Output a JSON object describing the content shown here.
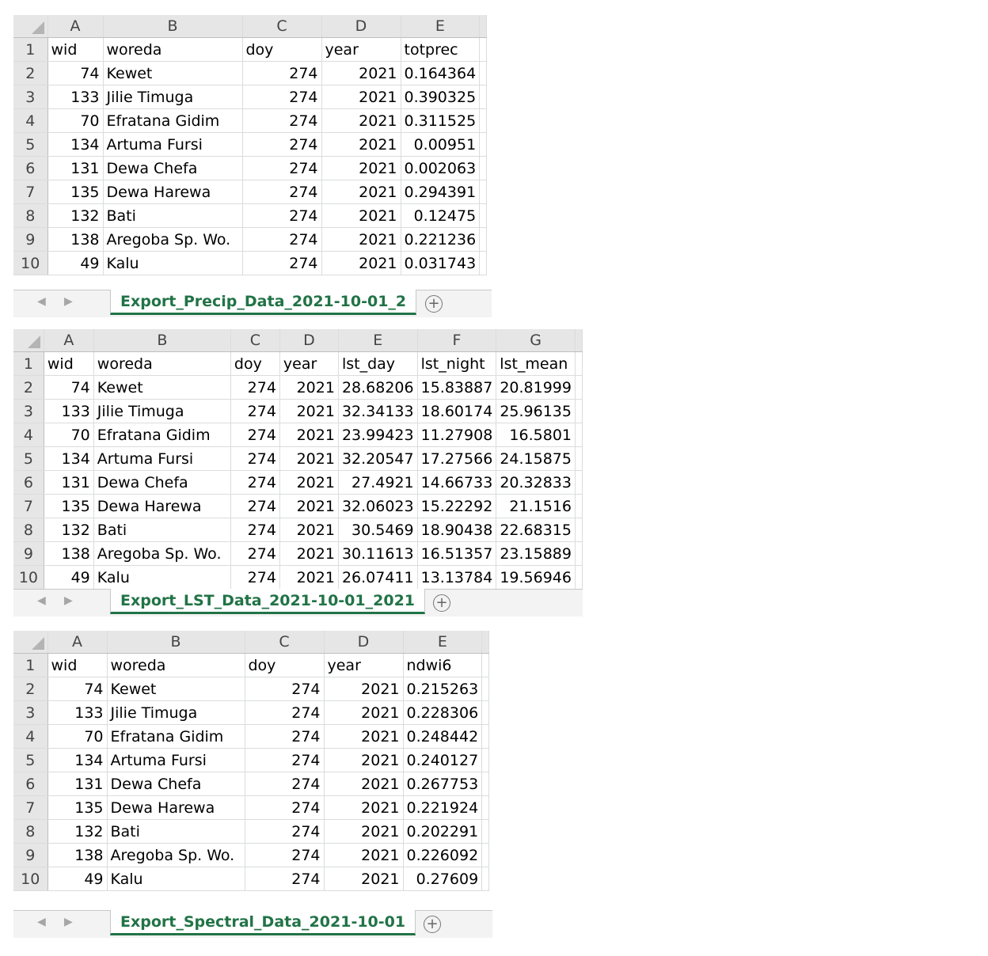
{
  "plus_symbol": "+",
  "nav": {
    "prev": "◀",
    "next": "▶"
  },
  "sheets": [
    {
      "tab_name": "Export_Precip_Data_2021-10-01_2",
      "column_letters": [
        "A",
        "B",
        "C",
        "D",
        "E"
      ],
      "row_numbers": [
        "1",
        "2",
        "3",
        "4",
        "5",
        "6",
        "7",
        "8",
        "9",
        "10"
      ],
      "headers": [
        "wid",
        "woreda",
        "doy",
        "year",
        "totprec"
      ],
      "rows": [
        [
          "74",
          "Kewet",
          "274",
          "2021",
          "0.164364"
        ],
        [
          "133",
          "Jilie Timuga",
          "274",
          "2021",
          "0.390325"
        ],
        [
          "70",
          "Efratana Gidim",
          "274",
          "2021",
          "0.311525"
        ],
        [
          "134",
          "Artuma Fursi",
          "274",
          "2021",
          "0.00951"
        ],
        [
          "131",
          "Dewa Chefa",
          "274",
          "2021",
          "0.002063"
        ],
        [
          "135",
          "Dewa Harewa",
          "274",
          "2021",
          "0.294391"
        ],
        [
          "132",
          "Bati",
          "274",
          "2021",
          "0.12475"
        ],
        [
          "138",
          "Aregoba Sp. Wo.",
          "274",
          "2021",
          "0.221236"
        ],
        [
          "49",
          "Kalu",
          "274",
          "2021",
          "0.031743"
        ]
      ]
    },
    {
      "tab_name": "Export_LST_Data_2021-10-01_2021",
      "column_letters": [
        "A",
        "B",
        "C",
        "D",
        "E",
        "F",
        "G"
      ],
      "row_numbers": [
        "1",
        "2",
        "3",
        "4",
        "5",
        "6",
        "7",
        "8",
        "9",
        "10"
      ],
      "headers": [
        "wid",
        "woreda",
        "doy",
        "year",
        "lst_day",
        "lst_night",
        "lst_mean"
      ],
      "rows": [
        [
          "74",
          "Kewet",
          "274",
          "2021",
          "28.68206",
          "15.83887",
          "20.81999"
        ],
        [
          "133",
          "Jilie Timuga",
          "274",
          "2021",
          "32.34133",
          "18.60174",
          "25.96135"
        ],
        [
          "70",
          "Efratana Gidim",
          "274",
          "2021",
          "23.99423",
          "11.27908",
          "16.5801"
        ],
        [
          "134",
          "Artuma Fursi",
          "274",
          "2021",
          "32.20547",
          "17.27566",
          "24.15875"
        ],
        [
          "131",
          "Dewa Chefa",
          "274",
          "2021",
          "27.4921",
          "14.66733",
          "20.32833"
        ],
        [
          "135",
          "Dewa Harewa",
          "274",
          "2021",
          "32.06023",
          "15.22292",
          "21.1516"
        ],
        [
          "132",
          "Bati",
          "274",
          "2021",
          "30.5469",
          "18.90438",
          "22.68315"
        ],
        [
          "138",
          "Aregoba Sp. Wo.",
          "274",
          "2021",
          "30.11613",
          "16.51357",
          "23.15889"
        ],
        [
          "49",
          "Kalu",
          "274",
          "2021",
          "26.07411",
          "13.13784",
          "19.56946"
        ]
      ]
    },
    {
      "tab_name": "Export_Spectral_Data_2021-10-01",
      "column_letters": [
        "A",
        "B",
        "C",
        "D",
        "E"
      ],
      "row_numbers": [
        "1",
        "2",
        "3",
        "4",
        "5",
        "6",
        "7",
        "8",
        "9",
        "10"
      ],
      "headers": [
        "wid",
        "woreda",
        "doy",
        "year",
        "ndwi6"
      ],
      "rows": [
        [
          "74",
          "Kewet",
          "274",
          "2021",
          "0.215263"
        ],
        [
          "133",
          "Jilie Timuga",
          "274",
          "2021",
          "0.228306"
        ],
        [
          "70",
          "Efratana Gidim",
          "274",
          "2021",
          "0.248442"
        ],
        [
          "134",
          "Artuma Fursi",
          "274",
          "2021",
          "0.240127"
        ],
        [
          "131",
          "Dewa Chefa",
          "274",
          "2021",
          "0.267753"
        ],
        [
          "135",
          "Dewa Harewa",
          "274",
          "2021",
          "0.221924"
        ],
        [
          "132",
          "Bati",
          "274",
          "2021",
          "0.202291"
        ],
        [
          "138",
          "Aregoba Sp. Wo.",
          "274",
          "2021",
          "0.226092"
        ],
        [
          "49",
          "Kalu",
          "274",
          "2021",
          "0.27609"
        ]
      ]
    }
  ]
}
